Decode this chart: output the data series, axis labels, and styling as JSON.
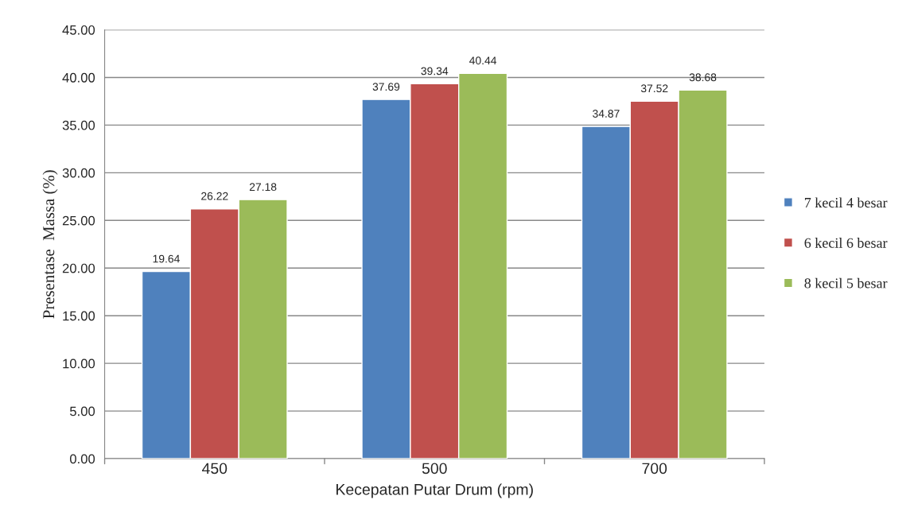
{
  "chart_data": {
    "type": "bar",
    "xlabel": "Kecepatan Putar Drum (rpm)",
    "ylabel": "Presentase  Massa (%)",
    "categories": [
      "450",
      "500",
      "700"
    ],
    "series": [
      {
        "name": "7 kecil 4 besar",
        "color": "#4f81bd",
        "values": [
          19.64,
          37.69,
          34.87
        ]
      },
      {
        "name": "6 kecil 6 besar",
        "color": "#c0504d",
        "values": [
          26.22,
          39.34,
          37.52
        ]
      },
      {
        "name": "8 kecil 5 besar",
        "color": "#9bbb59",
        "values": [
          27.18,
          40.44,
          38.68
        ]
      }
    ],
    "ylim": [
      0,
      45
    ],
    "yticks": [
      {
        "value": 0,
        "label": "0.00"
      },
      {
        "value": 5,
        "label": "5.00"
      },
      {
        "value": 10,
        "label": "10.00"
      },
      {
        "value": 15,
        "label": "15.00"
      },
      {
        "value": 20,
        "label": "20.00"
      },
      {
        "value": 25,
        "label": "25.00"
      },
      {
        "value": 30,
        "label": "30.00"
      },
      {
        "value": 35,
        "label": "35.00"
      },
      {
        "value": 40,
        "label": "40.00"
      },
      {
        "value": 45,
        "label": "45.00"
      }
    ],
    "grid": "y",
    "legend": "right",
    "data_labels": true
  }
}
